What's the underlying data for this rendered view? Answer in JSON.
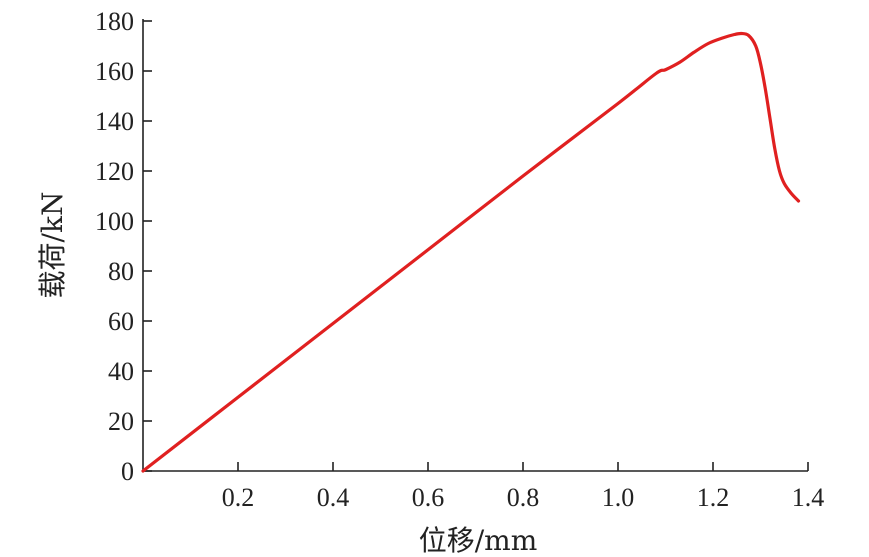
{
  "chart_data": {
    "type": "line",
    "title": "",
    "xlabel": "位移/mm",
    "ylabel": "载荷/kN",
    "xlim": [
      0,
      1.4
    ],
    "ylim": [
      0,
      180
    ],
    "x_ticks": [
      {
        "value": 0.2,
        "label": "0.2"
      },
      {
        "value": 0.4,
        "label": "0.4"
      },
      {
        "value": 0.6,
        "label": "0.6"
      },
      {
        "value": 0.8,
        "label": "0.8"
      },
      {
        "value": 1.0,
        "label": "1.0"
      },
      {
        "value": 1.2,
        "label": "1.2"
      },
      {
        "value": 1.4,
        "label": "1.4"
      }
    ],
    "y_ticks": [
      {
        "value": 0,
        "label": "0"
      },
      {
        "value": 20,
        "label": "20"
      },
      {
        "value": 40,
        "label": "40"
      },
      {
        "value": 60,
        "label": "60"
      },
      {
        "value": 80,
        "label": "80"
      },
      {
        "value": 100,
        "label": "100"
      },
      {
        "value": 120,
        "label": "120"
      },
      {
        "value": 140,
        "label": "140"
      },
      {
        "value": 160,
        "label": "160"
      },
      {
        "value": 180,
        "label": "180"
      }
    ],
    "grid": false,
    "legend": "none",
    "series": [
      {
        "color": "#e02020",
        "points": [
          [
            0,
            0
          ],
          [
            0.2,
            29.5
          ],
          [
            0.4,
            59
          ],
          [
            0.6,
            88.5
          ],
          [
            0.8,
            118
          ],
          [
            1.0,
            147
          ],
          [
            1.08,
            159
          ],
          [
            1.1,
            160.5
          ],
          [
            1.13,
            163.5
          ],
          [
            1.16,
            167.5
          ],
          [
            1.19,
            171
          ],
          [
            1.22,
            173.2
          ],
          [
            1.245,
            174.6
          ],
          [
            1.26,
            175.0
          ],
          [
            1.275,
            174.2
          ],
          [
            1.29,
            170
          ],
          [
            1.3,
            163
          ],
          [
            1.31,
            153
          ],
          [
            1.32,
            141
          ],
          [
            1.33,
            129
          ],
          [
            1.34,
            120
          ],
          [
            1.35,
            115
          ],
          [
            1.365,
            111
          ],
          [
            1.38,
            108
          ]
        ]
      }
    ]
  }
}
